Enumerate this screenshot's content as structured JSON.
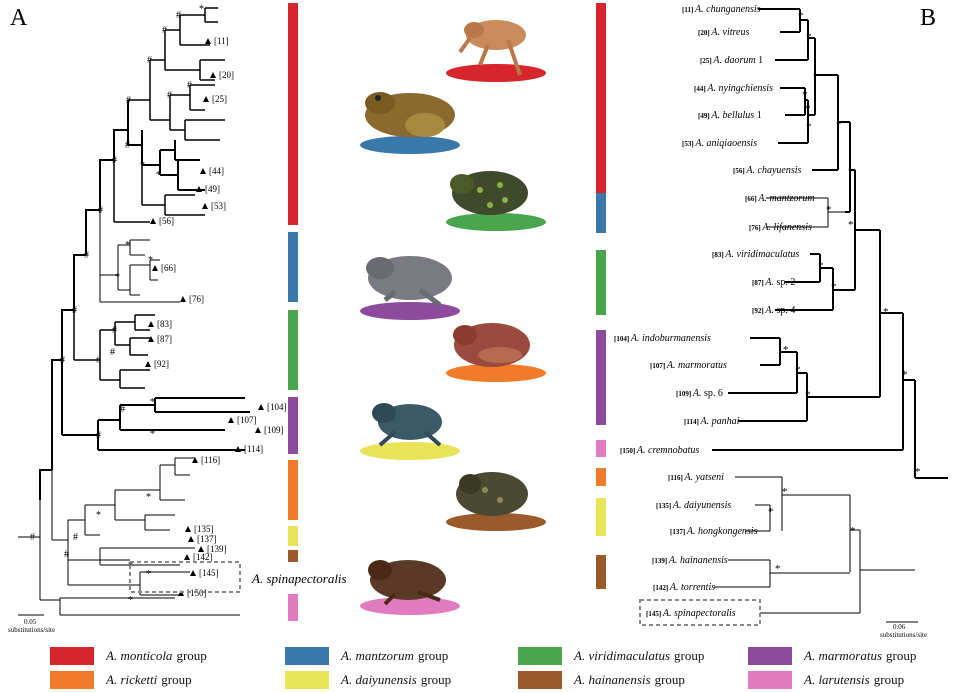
{
  "panels": {
    "a_label": "A",
    "b_label": "B"
  },
  "colors": {
    "monticola": "#d7262b",
    "mantzorum": "#3a78ac",
    "viridimaculatus": "#4aa64c",
    "marmoratus": "#8e4a9c",
    "ricketti": "#f07c2b",
    "daiyunensis": "#e8e357",
    "hainanensis": "#9b5a2b",
    "larutensis": "#e07cbf"
  },
  "tree_a": {
    "tip_labels": [
      "[11]",
      "[20]",
      "[25]",
      "[44]",
      "[49]",
      "[53]",
      "[56]",
      "[66]",
      "[76]",
      "[83]",
      "[87]",
      "[92]",
      "[104]",
      "[107]",
      "[109]",
      "[114]",
      "[116]",
      "[135]",
      "[137]",
      "[139]",
      "[142]",
      "[145]",
      "[150]"
    ],
    "highlight_label": "A. spinapectoralis",
    "scale_value": "0.05",
    "scale_unit": "substitutions/site"
  },
  "tree_b": {
    "tips": [
      {
        "num": "[11]",
        "name": "A. chunganensis",
        "suffix": ""
      },
      {
        "num": "[20]",
        "name": "A. vitreus",
        "suffix": ""
      },
      {
        "num": "[25]",
        "name": "A. daorum",
        "suffix": "1"
      },
      {
        "num": "[44]",
        "name": "A. nyingchiensis",
        "suffix": ""
      },
      {
        "num": "[49]",
        "name": "A. bellulus",
        "suffix": "1"
      },
      {
        "num": "[53]",
        "name": "A. aniqiaoensis",
        "suffix": ""
      },
      {
        "num": "[56]",
        "name": "A. chayuensis",
        "suffix": ""
      },
      {
        "num": "[66]",
        "name": "A. mantzorum",
        "suffix": ""
      },
      {
        "num": "[76]",
        "name": "A. lifanensis",
        "suffix": ""
      },
      {
        "num": "[83]",
        "name": "A. viridimaculatus",
        "suffix": ""
      },
      {
        "num": "[87]",
        "name": "A.",
        "suffix": "sp. 2"
      },
      {
        "num": "[92]",
        "name": "A.",
        "suffix": "sp. 4"
      },
      {
        "num": "[104]",
        "name": "A. indoburmanensis",
        "suffix": ""
      },
      {
        "num": "[107]",
        "name": "A. marmoratus",
        "suffix": ""
      },
      {
        "num": "[109]",
        "name": "A.",
        "suffix": "sp. 6"
      },
      {
        "num": "[114]",
        "name": "A. panhai",
        "suffix": ""
      },
      {
        "num": "[150]",
        "name": "A. cremnobatus",
        "suffix": ""
      },
      {
        "num": "[116]",
        "name": "A. yatseni",
        "suffix": ""
      },
      {
        "num": "[135]",
        "name": "A. daiyunensis",
        "suffix": ""
      },
      {
        "num": "[137]",
        "name": "A. hongkongensis",
        "suffix": ""
      },
      {
        "num": "[139]",
        "name": "A. hainanensis",
        "suffix": ""
      },
      {
        "num": "[142]",
        "name": "A. torrentis",
        "suffix": ""
      },
      {
        "num": "[145]",
        "name": "A. spinapectoralis",
        "suffix": ""
      }
    ],
    "scale_value": "0.06",
    "scale_unit": "substitutions/site"
  },
  "legend": [
    {
      "name": "A. monticola",
      "suffix": "group",
      "color": "#d7262b"
    },
    {
      "name": "A. mantzorum",
      "suffix": "group",
      "color": "#3a78ac"
    },
    {
      "name": "A. viridimaculatus",
      "suffix": "group",
      "color": "#4aa64c"
    },
    {
      "name": "A. marmoratus",
      "suffix": "group",
      "color": "#8e4a9c"
    },
    {
      "name": "A. ricketti",
      "suffix": "group",
      "color": "#f07c2b"
    },
    {
      "name": "A. daiyunensis",
      "suffix": "group",
      "color": "#e8e357"
    },
    {
      "name": "A. hainanensis",
      "suffix": "group",
      "color": "#9b5a2b"
    },
    {
      "name": "A. larutensis",
      "suffix": "group",
      "color": "#e07cbf"
    }
  ]
}
